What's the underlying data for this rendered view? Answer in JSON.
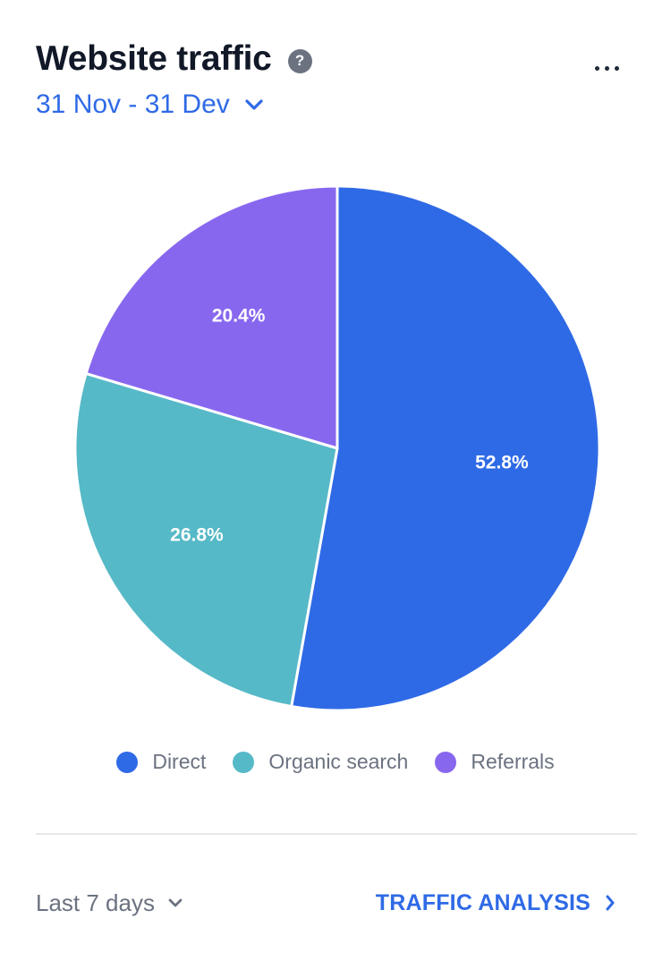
{
  "header": {
    "title": "Website traffic",
    "help_icon": "question-circle-icon",
    "more_icon": "ellipsis-icon",
    "date_range": "31 Nov - 31 Dev"
  },
  "chart_data": {
    "type": "pie",
    "categories": [
      "Direct",
      "Organic search",
      "Referrals"
    ],
    "values": [
      52.8,
      26.8,
      20.4
    ],
    "labels": [
      "52.8%",
      "26.8%",
      "20.4%"
    ],
    "colors": [
      "#2f6ae6",
      "#56b9c7",
      "#8867ef"
    ],
    "legend_position": "bottom"
  },
  "legend": {
    "items": [
      {
        "label": "Direct",
        "color": "#2f6ae6"
      },
      {
        "label": "Organic search",
        "color": "#56b9c7"
      },
      {
        "label": "Referrals",
        "color": "#8867ef"
      }
    ]
  },
  "footer": {
    "period": "Last 7 days",
    "link": "TRAFFIC ANALYSIS"
  }
}
